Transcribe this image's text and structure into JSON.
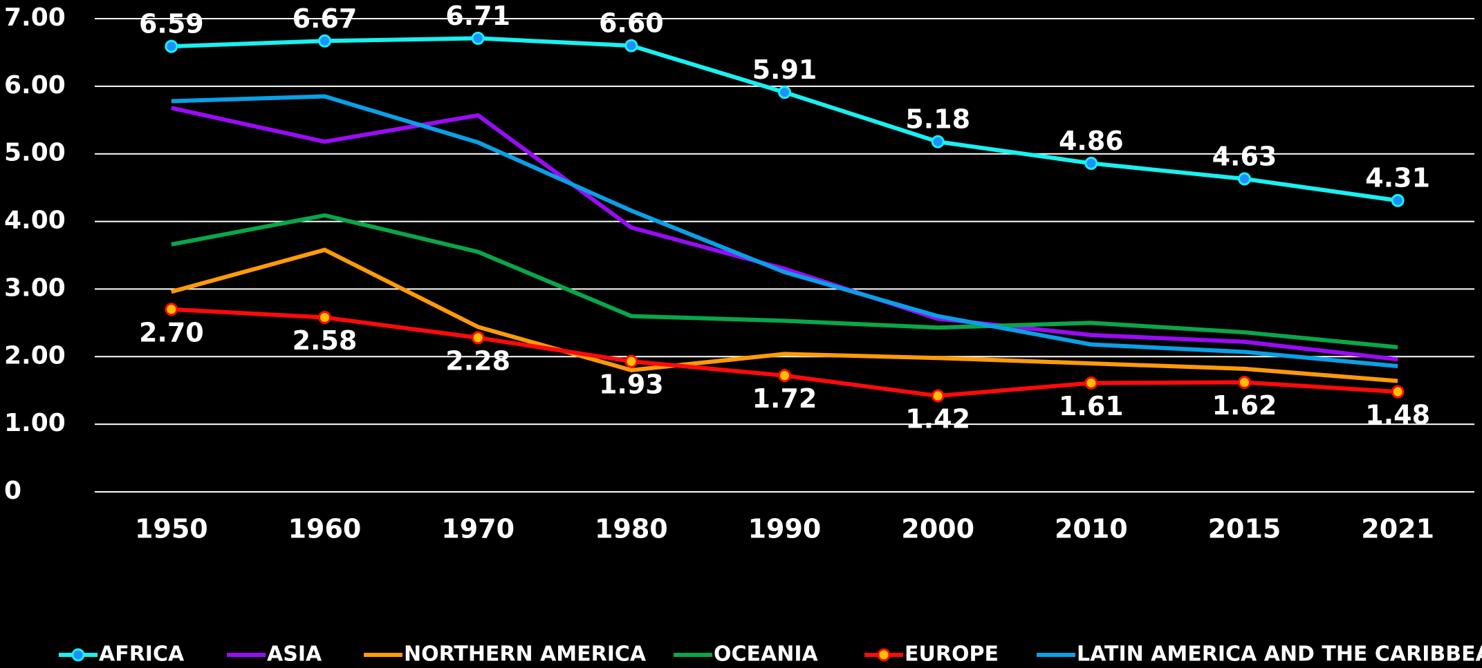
{
  "chart_data": {
    "type": "line",
    "categories": [
      "1950",
      "1960",
      "1970",
      "1980",
      "1990",
      "2000",
      "2010",
      "2015",
      "2021"
    ],
    "ylim": [
      0,
      7
    ],
    "yticks": [
      0,
      {
        "value": 1,
        "label": "1.00"
      },
      {
        "value": 2,
        "label": "2.00"
      },
      {
        "value": 3,
        "label": "3.00"
      },
      {
        "value": 4,
        "label": "4.00"
      },
      {
        "value": 5,
        "label": "5.00"
      },
      {
        "value": 6,
        "label": "6.00"
      },
      {
        "value": 7,
        "label": "7.00"
      }
    ],
    "grid": true,
    "legend": "bottom",
    "series": [
      {
        "name": "AFRICA",
        "color": "#19f0f0",
        "markers": true,
        "marker_color": "#1e90ff",
        "label_position": "above",
        "values": [
          6.59,
          6.67,
          6.71,
          6.6,
          5.91,
          5.18,
          4.86,
          4.63,
          4.31
        ],
        "value_labels": [
          "6.59",
          "6.67",
          "6.71",
          "6.60",
          "5.91",
          "5.18",
          "4.86",
          "4.63",
          "4.31"
        ]
      },
      {
        "name": "ASIA",
        "color": "#9a0cf5",
        "values": [
          5.68,
          5.18,
          5.57,
          3.91,
          3.3,
          2.56,
          2.32,
          2.22,
          1.96
        ]
      },
      {
        "name": "NORTHERN AMERICA",
        "color": "#ff9a0a",
        "values": [
          2.96,
          3.58,
          2.44,
          1.8,
          2.04,
          1.98,
          1.9,
          1.82,
          1.64
        ]
      },
      {
        "name": "OCEANIA",
        "color": "#0aa64a",
        "values": [
          3.66,
          4.09,
          3.55,
          2.6,
          2.53,
          2.43,
          2.5,
          2.36,
          2.14
        ]
      },
      {
        "name": "EUROPE",
        "color": "#ff0a0a",
        "markers": true,
        "marker_color": "#ffc000",
        "label_position": "below",
        "values": [
          2.7,
          2.58,
          2.28,
          1.93,
          1.72,
          1.42,
          1.61,
          1.62,
          1.48
        ],
        "value_labels": [
          "2.70",
          "2.58",
          "2.28",
          "1.93",
          "1.72",
          "1.42",
          "1.61",
          "1.62",
          "1.48"
        ]
      },
      {
        "name": "LATIN AMERICA AND THE CARIBBEAN",
        "color": "#0aa0e6",
        "values": [
          5.78,
          5.85,
          5.17,
          4.16,
          3.25,
          2.6,
          2.18,
          2.07,
          1.86
        ]
      }
    ]
  }
}
